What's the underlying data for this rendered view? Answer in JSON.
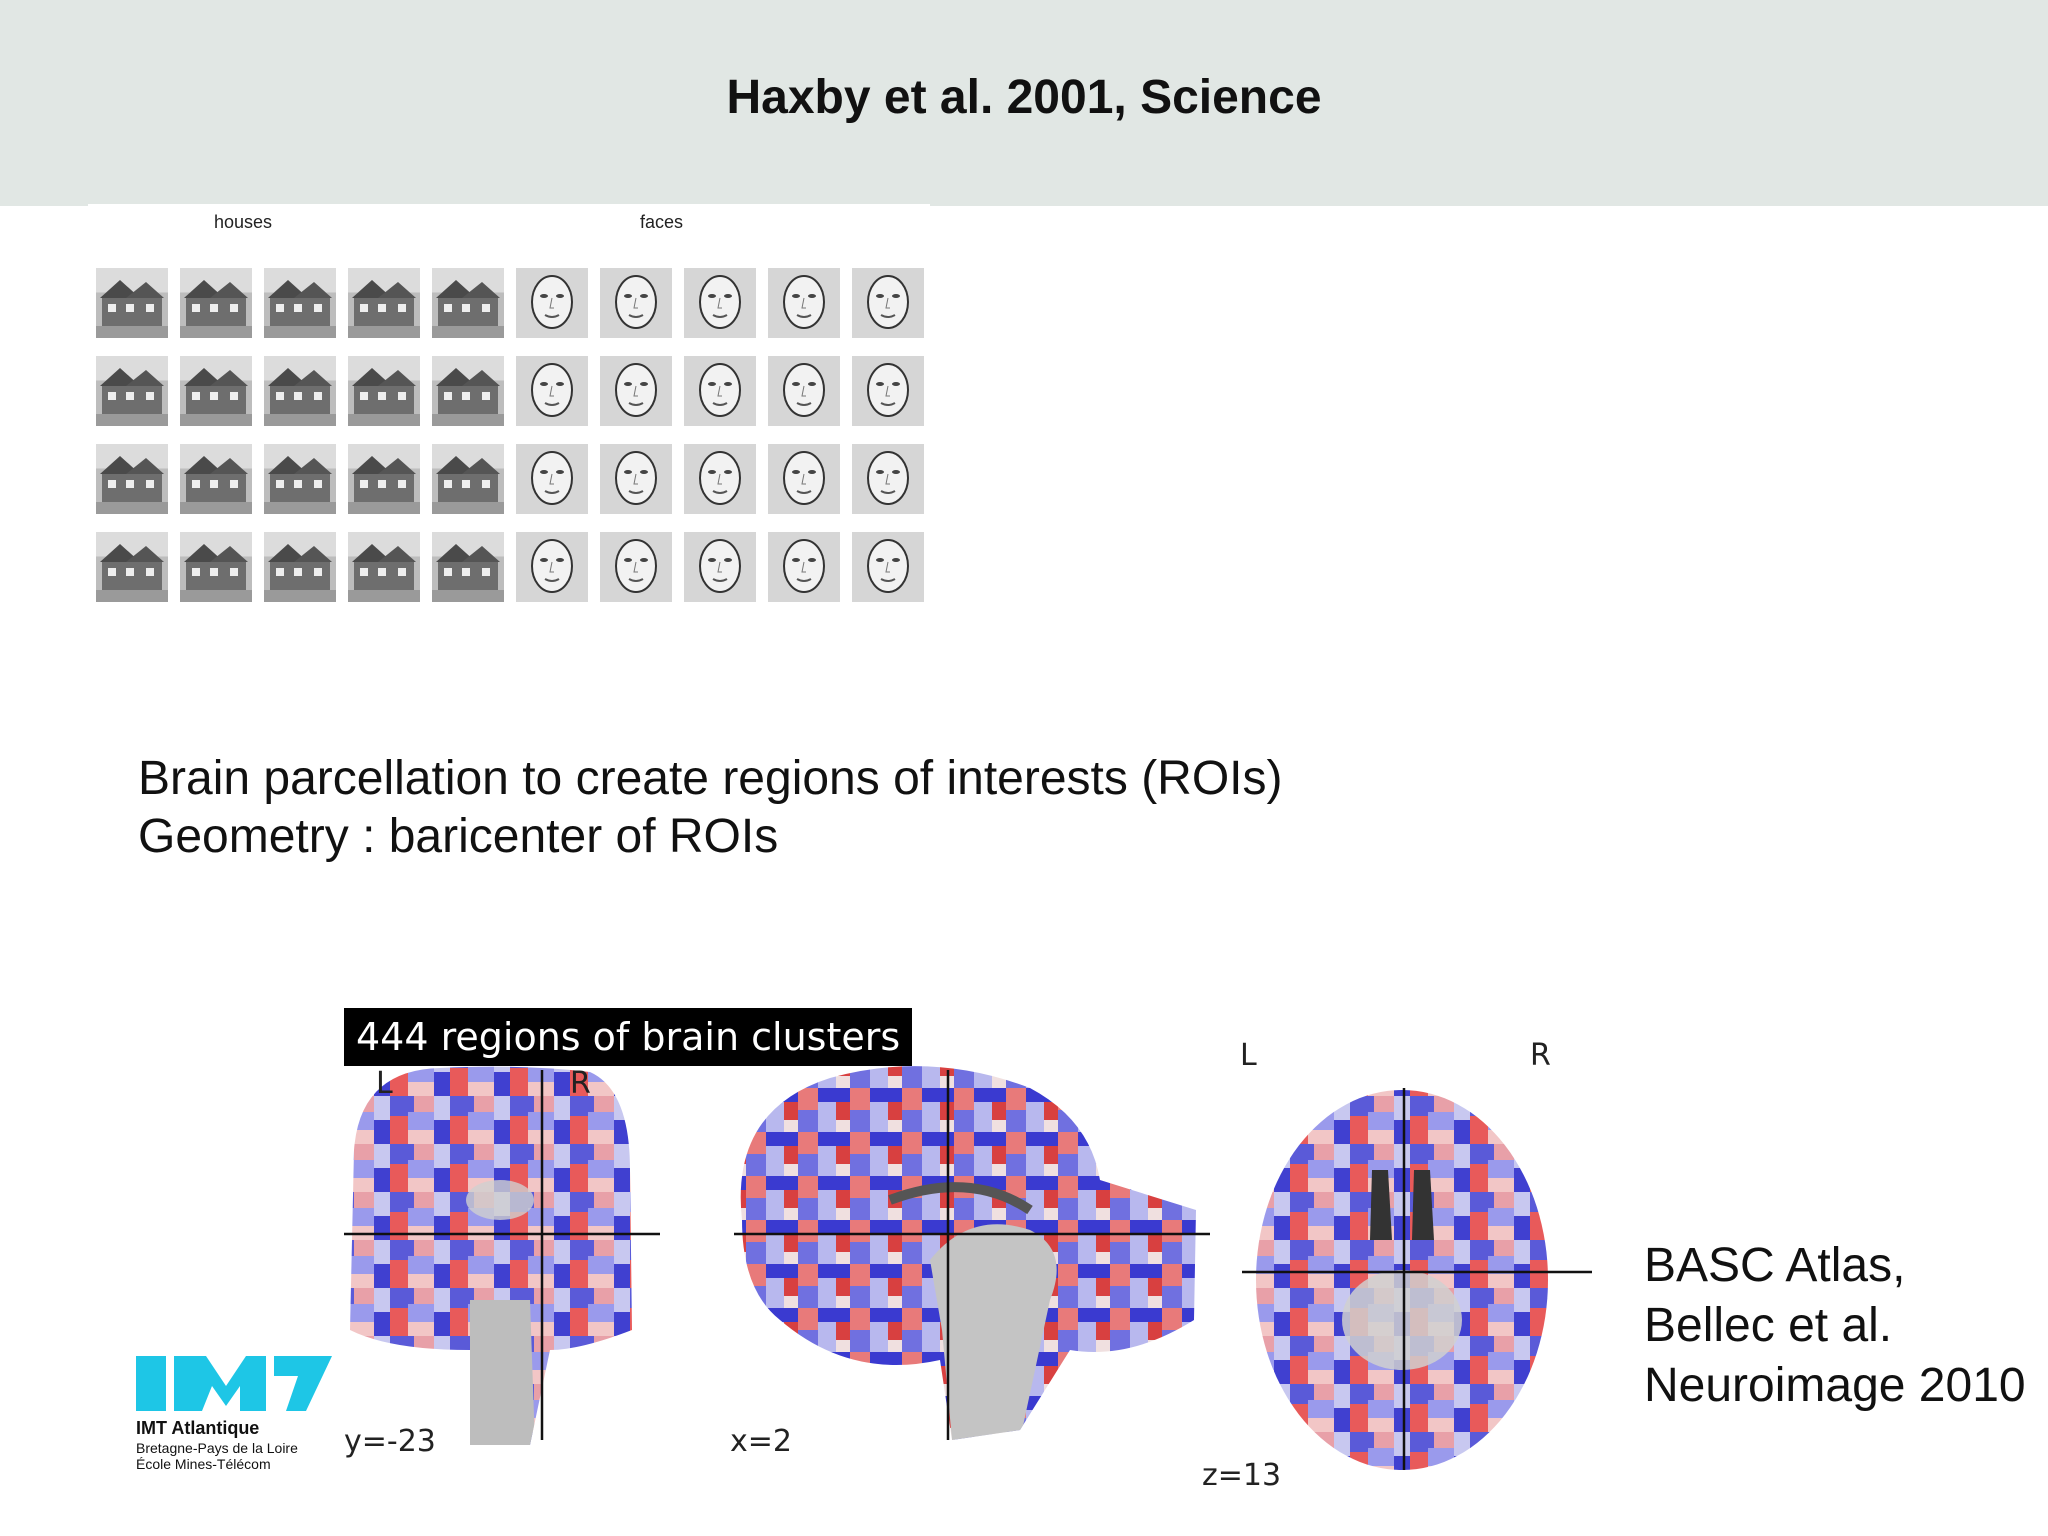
{
  "slide": {
    "title": "Haxby et al. 2001, Science",
    "stimuli": {
      "houses_label": "houses",
      "faces_label": "faces"
    },
    "bullets": [
      "Brain parcellation to create regions of interests (ROIs)",
      "Geometry : baricenter of ROIs"
    ],
    "brain_figure": {
      "label": "444 regions of brain clusters",
      "coronal": {
        "left": "L",
        "right": "R",
        "coord": "y=-23"
      },
      "sagittal": {
        "coord": "x=2"
      },
      "axial": {
        "left": "L",
        "right": "R",
        "coord": "z=13"
      }
    },
    "citation": [
      "BASC Atlas,",
      "Bellec et al.",
      "Neuroimage 2010"
    ],
    "logo": {
      "name": "IMT Atlantique",
      "line1": "Bretagne-Pays de la Loire",
      "line2": "École Mines-Télécom",
      "color": "#1ec6e6"
    }
  }
}
